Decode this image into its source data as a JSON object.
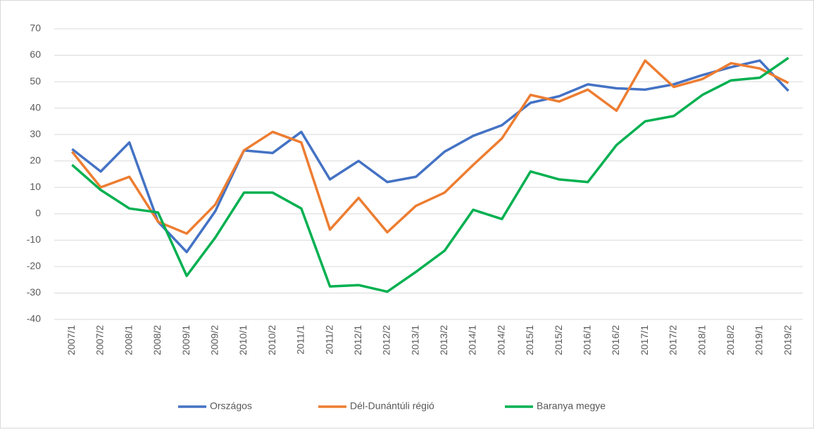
{
  "chart_data": {
    "type": "line",
    "categories": [
      "2007/1",
      "2007/2",
      "2008/1",
      "2008/2",
      "2009/1",
      "2009/2",
      "2010/1",
      "2010/2",
      "2011/1",
      "2011/2",
      "2012/1",
      "2012/2",
      "2013/1",
      "2013/2",
      "2014/1",
      "2014/2",
      "2015/1",
      "2015/2",
      "2016/1",
      "2016/2",
      "2017/1",
      "2017/2",
      "2018/1",
      "2018/2",
      "2019/1",
      "2019/2"
    ],
    "series": [
      {
        "name": "Országos",
        "color": "#4472c4",
        "values": [
          24.5,
          16,
          27,
          -3,
          -14.5,
          1,
          24,
          23,
          31,
          13,
          20,
          12,
          14,
          23.5,
          29.5,
          33.5,
          42,
          44.5,
          49,
          47.5,
          47,
          49,
          52.5,
          55.5,
          58,
          46.5
        ]
      },
      {
        "name": "Dél-Dunántúli régió",
        "color": "#ed7d31",
        "values": [
          23.5,
          10,
          14,
          -3,
          -7.5,
          3.5,
          24,
          31,
          27,
          -6,
          6,
          -7,
          3,
          8,
          18.5,
          28.5,
          45,
          42.5,
          47,
          39,
          58,
          48,
          51,
          57,
          55,
          49.5
        ]
      },
      {
        "name": "Baranya megye",
        "color": "#00b050",
        "values": [
          18.5,
          9,
          2,
          0.5,
          -23.5,
          -9,
          8,
          8,
          2,
          -27.5,
          -27,
          -29.5,
          -22,
          -14,
          1.5,
          -2,
          16,
          13,
          12,
          26,
          35,
          37,
          45,
          50.5,
          51.5,
          59
        ]
      }
    ],
    "ylim": [
      -40,
      70
    ],
    "yticks": [
      -40,
      -30,
      -20,
      -10,
      0,
      10,
      20,
      30,
      40,
      50,
      60,
      70
    ],
    "grid": true,
    "legend": "bottom"
  }
}
